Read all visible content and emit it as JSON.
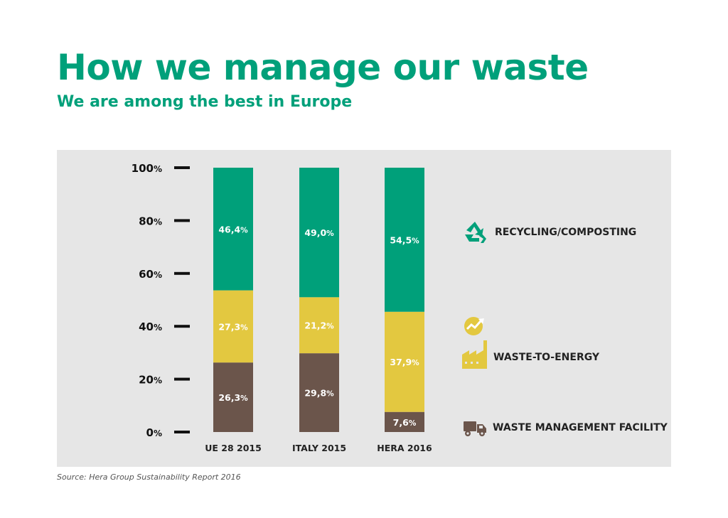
{
  "header": {
    "title": "How we manage our waste",
    "subtitle": "We are among the best in Europe"
  },
  "footer": {
    "source": "Source: Hera Group Sustainability Report 2016"
  },
  "colors": {
    "recycling": "#00a07a",
    "energy": "#e3c840",
    "facility": "#6b554b",
    "panel": "#e6e6e6",
    "title": "#00a07a"
  },
  "chart_data": {
    "type": "bar",
    "stacked": true,
    "categories": [
      "UE 28 2015",
      "ITALY 2015",
      "HERA 2016"
    ],
    "series": [
      {
        "name": "WASTE MANAGEMENT FACILITY",
        "key": "facility",
        "values": [
          26.3,
          29.8,
          7.6
        ],
        "labels": [
          "26,3",
          "29,8",
          "7,6"
        ]
      },
      {
        "name": "WASTE-TO-ENERGY",
        "key": "energy",
        "values": [
          27.3,
          21.2,
          37.9
        ],
        "labels": [
          "27,3",
          "21,2",
          "37,9"
        ]
      },
      {
        "name": "RECYCLING/COMPOSTING",
        "key": "recycling",
        "values": [
          46.4,
          49.0,
          54.5
        ],
        "labels": [
          "46,4",
          "49,0",
          "54,5"
        ]
      }
    ],
    "yticks": [
      {
        "value": 0,
        "label": "0"
      },
      {
        "value": 20,
        "label": "20"
      },
      {
        "value": 40,
        "label": "40"
      },
      {
        "value": 60,
        "label": "60"
      },
      {
        "value": 80,
        "label": "80"
      },
      {
        "value": 100,
        "label": "100"
      }
    ],
    "unit": "%",
    "ylim": [
      0,
      100
    ],
    "grid": false,
    "legend_position": "right"
  }
}
